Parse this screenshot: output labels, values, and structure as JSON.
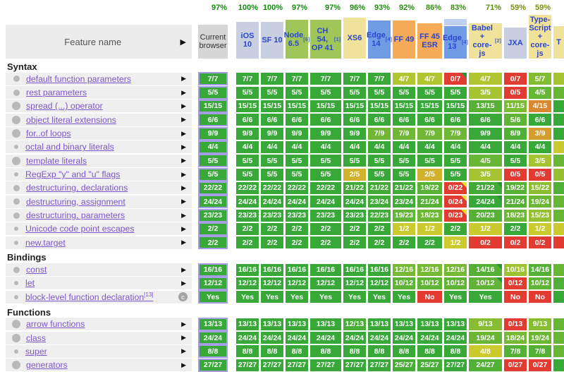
{
  "header": {
    "feature_col_label": "Feature name",
    "expand_arrow": "▶",
    "columns": [
      {
        "id": "current",
        "label": "Current browser",
        "sup": "",
        "pct": "97%",
        "type": "current",
        "band": false
      },
      {
        "id": "ios10",
        "label": "iOS 10",
        "sup": "",
        "pct": "100%",
        "type": "bluegrey",
        "band": false
      },
      {
        "id": "sf10",
        "label": "SF 10",
        "sup": "",
        "pct": "100%",
        "type": "bluegrey",
        "band": false
      },
      {
        "id": "node65",
        "label": "Node 6.5",
        "sup": "[6]",
        "pct": "97%",
        "type": "green",
        "band": false
      },
      {
        "id": "ch54-op41",
        "label": "CH 54, OP 41",
        "sup": "[1]",
        "pct": "97%",
        "type": "green",
        "band": false
      },
      {
        "id": "xs6",
        "label": "XS6",
        "sup": "",
        "pct": "96%",
        "type": "yellow",
        "band": false
      },
      {
        "id": "edge14",
        "label": "Edge 14",
        "sup": "[4]",
        "pct": "93%",
        "type": "blue",
        "band": false
      },
      {
        "id": "ff49",
        "label": "FF 49",
        "sup": "",
        "pct": "92%",
        "type": "orange",
        "band": false
      },
      {
        "id": "ff45esr",
        "label": "FF 45 ESR",
        "sup": "",
        "pct": "86%",
        "type": "orange",
        "band": false
      },
      {
        "id": "edge13",
        "label": "Edge 13",
        "sup": "[4]",
        "pct": "83%",
        "type": "blue",
        "band": true
      },
      {
        "id": "babel",
        "label": "Babel + core-js",
        "sup": "[2]",
        "pct": "71%",
        "type": "yellow",
        "band": false
      },
      {
        "id": "jxa",
        "label": "JXA",
        "sup": "",
        "pct": "59%",
        "type": "bluegrey",
        "band": false
      },
      {
        "id": "typescript",
        "label": "Type-Script + core-js",
        "sup": "",
        "pct": "59%",
        "type": "yellow",
        "band": false
      },
      {
        "id": "traceur",
        "label": "T",
        "sup": "",
        "pct": "",
        "type": "yellow",
        "band": false
      }
    ]
  },
  "sections": [
    {
      "title": "Syntax",
      "rows": [
        {
          "name": "default function parameters",
          "sup": "",
          "dot": "md",
          "expander": "arrow",
          "current": "7/7",
          "cells": [
            "7/7",
            "7/7",
            "7/7",
            "7/7",
            "7/7",
            "7/7",
            "4/7",
            "4/7",
            {
              "v": "0/7",
              "corner": "green"
            },
            "4/7",
            "0/7",
            "5/7"
          ],
          "traceur_ratio": 0.6
        },
        {
          "name": "rest parameters",
          "sup": "",
          "dot": "md",
          "expander": "arrow",
          "current": "5/5",
          "cells": [
            "5/5",
            "5/5",
            "5/5",
            "5/5",
            "5/5",
            "5/5",
            "5/5",
            "5/5",
            "5/5",
            "3/5",
            "0/5",
            "4/5"
          ],
          "traceur_ratio": 0.8
        },
        {
          "name": "spread (...) operator",
          "sup": "",
          "dot": "lg",
          "expander": "arrow",
          "current": "15/15",
          "cells": [
            "15/15",
            "15/15",
            "15/15",
            "15/15",
            "15/15",
            "15/15",
            "15/15",
            "15/15",
            "15/15",
            "13/15",
            "11/15",
            "4/15"
          ],
          "traceur_ratio": 1
        },
        {
          "name": "object literal extensions",
          "sup": "",
          "dot": "lg",
          "expander": "arrow",
          "current": "6/6",
          "cells": [
            "6/6",
            "6/6",
            "6/6",
            "6/6",
            "6/6",
            "6/6",
            "6/6",
            "6/6",
            "6/6",
            "6/6",
            "5/6",
            "6/6"
          ],
          "traceur_ratio": 1
        },
        {
          "name": "for..of loops",
          "sup": "",
          "dot": "lg",
          "expander": "arrow",
          "current": "9/9",
          "cells": [
            "9/9",
            "9/9",
            "9/9",
            "9/9",
            "9/9",
            "7/9",
            "7/9",
            "7/9",
            "7/9",
            "9/9",
            "8/9",
            "3/9"
          ],
          "traceur_ratio": 1
        },
        {
          "name": "octal and binary literals",
          "sup": "",
          "dot": "sm",
          "expander": "arrow",
          "current": "4/4",
          "cells": [
            "4/4",
            "4/4",
            "4/4",
            "4/4",
            "4/4",
            "4/4",
            "4/4",
            "4/4",
            "4/4",
            "4/4",
            "4/4",
            "4/4"
          ],
          "traceur_ratio": 0.5
        },
        {
          "name": "template literals",
          "sup": "",
          "dot": "lg",
          "expander": "arrow",
          "current": "5/5",
          "cells": [
            "5/5",
            "5/5",
            "5/5",
            "5/5",
            "5/5",
            "5/5",
            "5/5",
            "5/5",
            "5/5",
            "4/5",
            "5/5",
            "3/5"
          ],
          "traceur_ratio": 0.8
        },
        {
          "name": "RegExp \"y\" and \"u\" flags",
          "sup": "",
          "dot": "sm",
          "expander": "arrow",
          "current": "5/5",
          "cells": [
            "5/5",
            "5/5",
            "5/5",
            "5/5",
            "2/5",
            "5/5",
            "5/5",
            "2/5",
            "5/5",
            "3/5",
            "0/5",
            "0/5"
          ],
          "traceur_ratio": 0.65
        },
        {
          "name": "destructuring, declarations",
          "sup": "",
          "dot": "md",
          "expander": "arrow",
          "current": "22/22",
          "cells": [
            "22/22",
            "22/22",
            "22/22",
            "22/22",
            "21/22",
            "21/22",
            "21/22",
            "19/22",
            {
              "v": "0/22",
              "corner": "yellow"
            },
            {
              "v": "21/22",
              "corner": "green"
            },
            "19/22",
            "15/22"
          ],
          "traceur_ratio": 0.9
        },
        {
          "name": "destructuring, assignment",
          "sup": "",
          "dot": "md",
          "expander": "arrow",
          "current": "24/24",
          "cells": [
            "24/24",
            "24/24",
            "24/24",
            "24/24",
            "24/24",
            "23/24",
            "23/24",
            "21/24",
            {
              "v": "0/24",
              "corner": "yellow"
            },
            {
              "v": "24/24",
              "corner": "green"
            },
            "21/24",
            "19/24"
          ],
          "traceur_ratio": 0.8
        },
        {
          "name": "destructuring, parameters",
          "sup": "",
          "dot": "md",
          "expander": "arrow",
          "current": "23/23",
          "cells": [
            "23/23",
            "23/23",
            "23/23",
            "23/23",
            "23/23",
            "22/23",
            "19/23",
            "18/23",
            {
              "v": "0/23",
              "corner": "yellow"
            },
            "20/23",
            "18/23",
            "15/23"
          ],
          "traceur_ratio": 0.8
        },
        {
          "name": "Unicode code point escapes",
          "sup": "",
          "dot": "sm",
          "expander": "arrow",
          "current": "2/2",
          "cells": [
            "2/2",
            "2/2",
            "2/2",
            "2/2",
            "2/2",
            "2/2",
            "1/2",
            "1/2",
            "2/2",
            "1/2",
            "2/2",
            "1/2"
          ],
          "traceur_ratio": 0.5
        },
        {
          "name": "new.target",
          "sup": "",
          "dot": "sm",
          "expander": "arrow",
          "current": "2/2",
          "cells": [
            "2/2",
            "2/2",
            "2/2",
            "2/2",
            "2/2",
            "2/2",
            "2/2",
            "2/2",
            "1/2",
            "0/2",
            "0/2",
            "0/2"
          ],
          "traceur_ratio": 0
        }
      ]
    },
    {
      "title": "Bindings",
      "rows": [
        {
          "name": "const",
          "sup": "",
          "dot": "md",
          "expander": "arrow",
          "current": "16/16",
          "cells": [
            "16/16",
            "16/16",
            "16/16",
            "16/16",
            "16/16",
            "16/16",
            "12/16",
            "12/16",
            "12/16",
            {
              "v": "14/16",
              "corner": "green"
            },
            "10/16",
            "14/16"
          ],
          "traceur_ratio": 0.8
        },
        {
          "name": "let",
          "sup": "",
          "dot": "sm",
          "expander": "arrow",
          "current": "12/12",
          "cells": [
            "12/12",
            "12/12",
            "12/12",
            "12/12",
            "12/12",
            "12/12",
            "10/12",
            "10/12",
            "10/12",
            {
              "v": "10/12",
              "corner": "green"
            },
            "0/12",
            "10/12"
          ],
          "traceur_ratio": 0.9
        },
        {
          "name": "block-level function declaration",
          "sup": "[13]",
          "dot": "sm",
          "expander": "c",
          "current": "Yes",
          "cells": [
            "Yes",
            "Yes",
            "Yes",
            "Yes",
            "Yes",
            "Yes",
            "Yes",
            "No",
            "Yes",
            "Yes",
            "No",
            "No"
          ],
          "traceur_ratio": 1
        }
      ]
    },
    {
      "title": "Functions",
      "rows": [
        {
          "name": "arrow functions",
          "sup": "",
          "dot": "lg",
          "expander": "arrow",
          "current": "13/13",
          "cells": [
            "13/13",
            "13/13",
            "13/13",
            "13/13",
            "12/13",
            "13/13",
            "13/13",
            "13/13",
            "13/13",
            "9/13",
            "0/13",
            "9/13"
          ],
          "traceur_ratio": 0.8
        },
        {
          "name": "class",
          "sup": "",
          "dot": "lg",
          "expander": "arrow",
          "current": "24/24",
          "cells": [
            "24/24",
            "24/24",
            "24/24",
            "24/24",
            "24/24",
            "24/24",
            "24/24",
            "24/24",
            "24/24",
            "19/24",
            "18/24",
            "19/24"
          ],
          "traceur_ratio": 0.8
        },
        {
          "name": "super",
          "sup": "",
          "dot": "sm",
          "expander": "arrow",
          "current": "8/8",
          "cells": [
            "8/8",
            "8/8",
            "8/8",
            "8/8",
            "8/8",
            "8/8",
            "8/8",
            "8/8",
            "8/8",
            "4/8",
            "7/8",
            "7/8"
          ],
          "traceur_ratio": 0.8
        },
        {
          "name": "generators",
          "sup": "",
          "dot": "lg",
          "expander": "arrow",
          "current": "27/27",
          "cells": [
            "27/27",
            "27/27",
            "27/27",
            "27/27",
            "27/27",
            "27/27",
            "25/27",
            "25/27",
            "27/27",
            "24/27",
            "0/27",
            "0/27"
          ],
          "traceur_ratio": 1
        }
      ]
    }
  ],
  "colors": {
    "header_bg": {
      "current": "#d6d6d6",
      "bluegrey": "#c7cfe1",
      "green": "#a0c65a",
      "yellow": "#f1e29b",
      "blue": "#6f9ce4",
      "orange": "#f5ab57"
    },
    "edge13_band": "#bdd0f0",
    "feature_link": "#7d56c9",
    "header_link": "#2b46cc",
    "corner_green": "#2c9238",
    "corner_yellow": "#e3e02c",
    "current_border": "#a79ce6",
    "pass_green": "#38a838",
    "fail_red": "#e2362a"
  }
}
